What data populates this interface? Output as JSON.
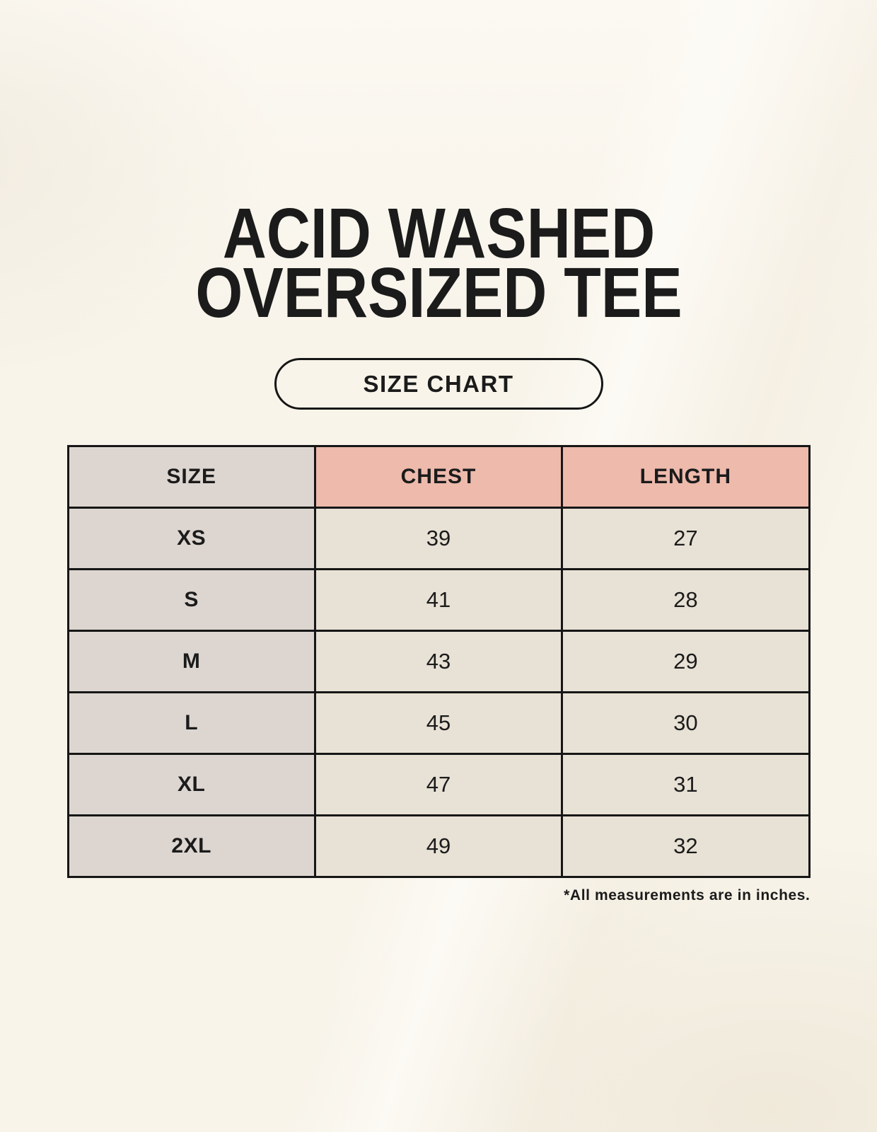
{
  "page": {
    "title_line1": "ACID WASHED",
    "title_line2": "OVERSIZED TEE",
    "size_chart_label": "SIZE CHART",
    "footnote": "*All measurements are in inches."
  },
  "chart_data": {
    "type": "table",
    "title": "ACID WASHED OVERSIZED TEE",
    "subtitle": "SIZE CHART",
    "columns": [
      "SIZE",
      "CHEST",
      "LENGTH"
    ],
    "rows": [
      [
        "XS",
        "39",
        "27"
      ],
      [
        "S",
        "41",
        "28"
      ],
      [
        "M",
        "43",
        "29"
      ],
      [
        "L",
        "45",
        "30"
      ],
      [
        "XL",
        "47",
        "31"
      ],
      [
        "2XL",
        "49",
        "32"
      ]
    ],
    "annotations": [
      "*All measurements are in inches."
    ]
  },
  "colors": {
    "background": "#F8F4EA",
    "size_column_bg": "#DDD6D0",
    "header_accent_bg": "#EDBAAC",
    "cell_bg": "#E8E1D5",
    "border": "#161616",
    "text": "#1B1B1B"
  }
}
